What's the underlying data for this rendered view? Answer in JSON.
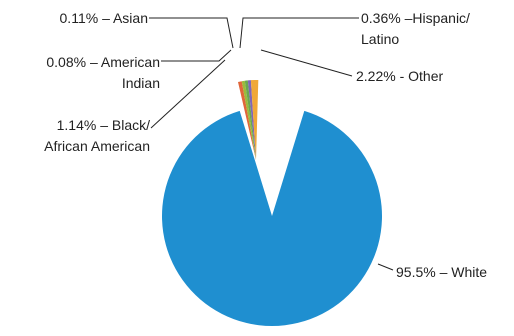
{
  "chart_data": {
    "type": "pie",
    "title": "",
    "legend": "none",
    "slices": [
      {
        "label": "White",
        "value": 95.5,
        "text": "95.5% – White",
        "color": "#1f8fd0"
      },
      {
        "label": "Black/African American",
        "value": 1.14,
        "text_lines": [
          "1.14% – Black/",
          "African American"
        ],
        "color": "#e0663a"
      },
      {
        "label": "American Indian",
        "value": 0.08,
        "text_lines": [
          "0.08% – American",
          "Indian"
        ],
        "color": "#9bbb3c"
      },
      {
        "label": "Asian",
        "value": 0.11,
        "text": "0.11% – Asian",
        "color": "#6aa84f"
      },
      {
        "label": "Hispanic/Latino",
        "value": 0.36,
        "text_lines": [
          "0.36% –Hispanic/",
          "Latino"
        ],
        "color": "#8066b8"
      },
      {
        "label": "Other",
        "value": 2.22,
        "text": "2.22% - Other",
        "color": "#f0a838"
      }
    ]
  }
}
